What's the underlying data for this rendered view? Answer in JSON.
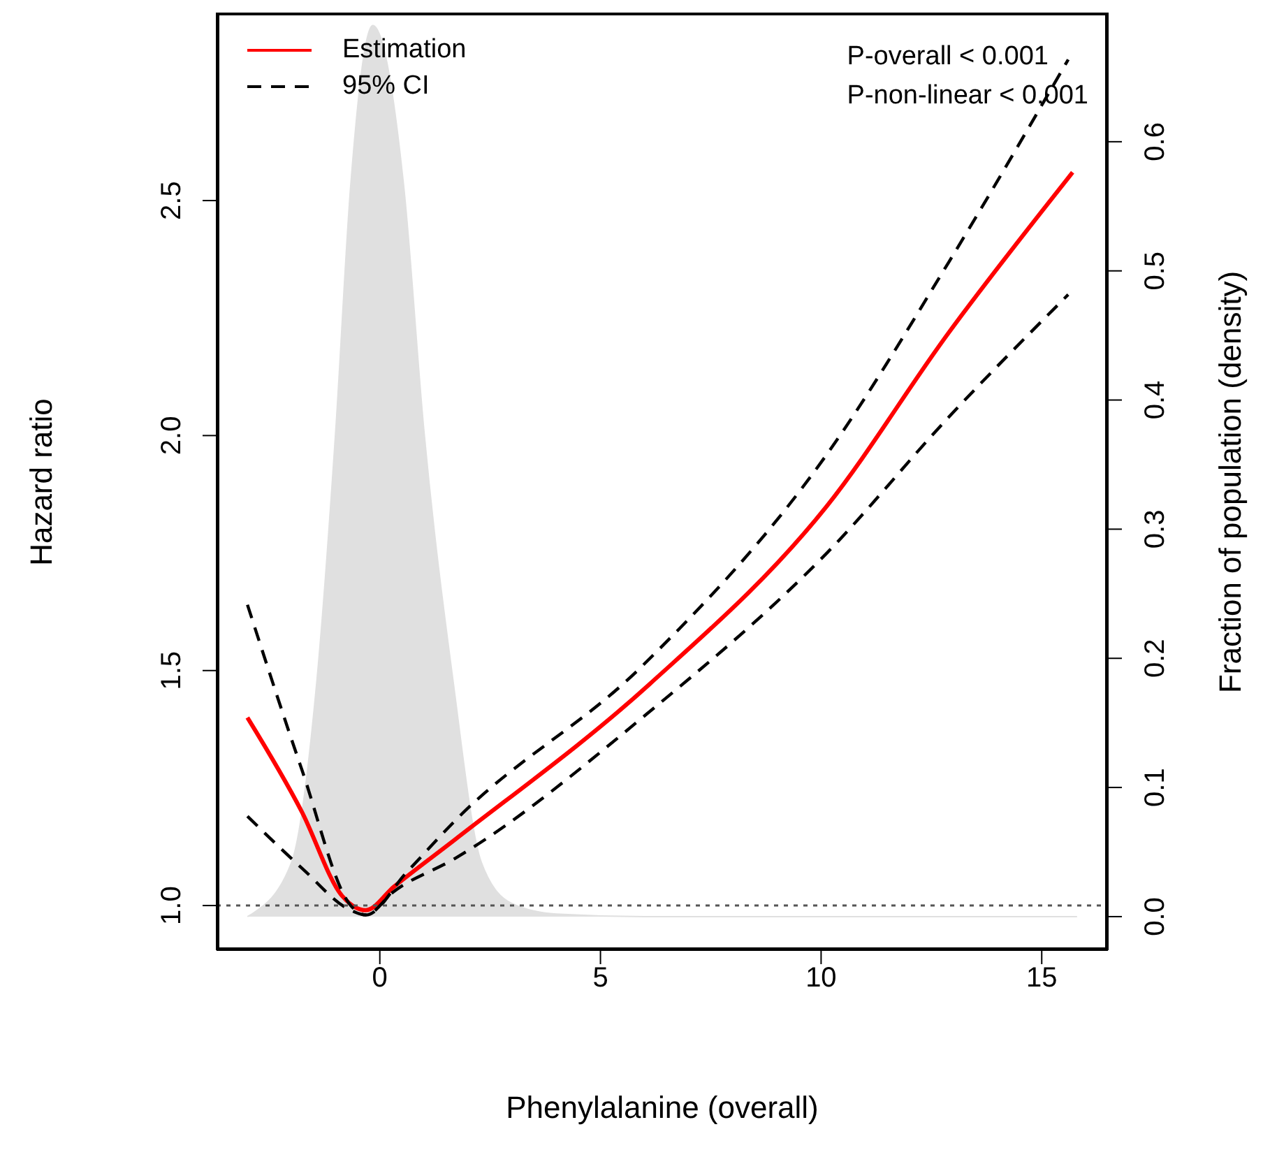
{
  "chart_data": {
    "type": "line",
    "xlabel": "Phenylalanine (overall)",
    "ylabel": "Hazard ratio",
    "y2label": "Fraction of population (density)",
    "annotations": [
      "P-overall < 0.001",
      "P-non-linear < 0.001"
    ],
    "xlim": [
      -3.7,
      16.5
    ],
    "xticks": [
      0,
      5,
      10,
      15
    ],
    "ylim": [
      0.905,
      2.9
    ],
    "yticks": [
      {
        "value": 1,
        "label": "1.0"
      },
      {
        "value": 1.5,
        "label": "1.5"
      },
      {
        "value": 2,
        "label": "2.0"
      },
      {
        "value": 2.5,
        "label": "2.5"
      }
    ],
    "y2lim": [
      -0.026,
      0.7
    ],
    "y2ticks": [
      {
        "value": 0,
        "label": "0.0"
      },
      0.1,
      0.2,
      0.3,
      0.4,
      0.5,
      0.6
    ],
    "legend": "top left",
    "grid": false,
    "ref_lines": [
      {
        "axis": "y",
        "value": 1,
        "color": "#555555",
        "line_style": "dotted"
      }
    ],
    "series": [
      {
        "type": "area",
        "axis": "y2",
        "color": "#e0e0e0",
        "x": [
          -3,
          -2.9,
          -2,
          -1.42,
          -1,
          -0.66,
          -0.16,
          0.54,
          1,
          1.65,
          2.3,
          3,
          4,
          6,
          10,
          15.8
        ],
        "values": [
          0,
          0.002,
          0.042,
          0.185,
          0.376,
          0.566,
          0.69,
          0.566,
          0.376,
          0.185,
          0.042,
          0.01,
          0.002,
          0,
          0,
          0
        ]
      },
      {
        "name": "Estimation",
        "color": "#ff0000",
        "line_style": "solid",
        "x": [
          -3,
          -1.77,
          -0.85,
          -0.32,
          0.32,
          1.7,
          6.1,
          10.13,
          12.9,
          15.7
        ],
        "values": [
          1.4,
          1.2,
          1.02,
          0.99,
          1.04,
          1.14,
          1.47,
          1.85,
          2.22,
          2.56
        ]
      },
      {
        "name": "95% CI",
        "color": "#000000",
        "line_style": "dashed",
        "x": [
          -3,
          -1.77,
          -0.66,
          -0.32,
          0.6,
          1.7,
          5.95,
          10.13,
          12.9,
          15.6
        ],
        "values": [
          1.64,
          1.29,
          1,
          0.98,
          1.07,
          1.18,
          1.51,
          1.96,
          2.37,
          2.8
        ]
      },
      {
        "color": "#000000",
        "line_style": "dashed",
        "x": [
          -3,
          -1.77,
          -0.66,
          -0.32,
          0.32,
          1.7,
          6.08,
          10.13,
          12.9,
          15.6
        ],
        "values": [
          1.19,
          1.08,
          0.99,
          0.98,
          1.03,
          1.1,
          1.41,
          1.75,
          2.04,
          2.3
        ]
      }
    ]
  }
}
